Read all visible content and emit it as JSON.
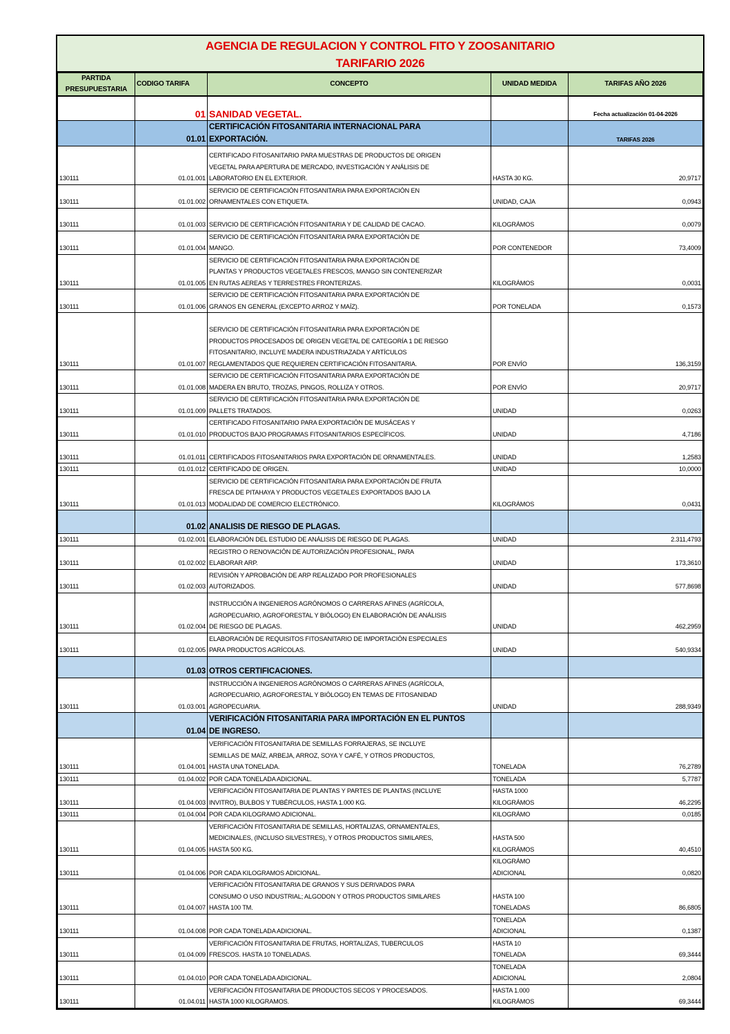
{
  "title": {
    "line1": "AGENCIA DE REGULACION Y CONTROL FITO Y ZOOSANITARIO",
    "line2": "TARIFARIO 2026"
  },
  "headers": {
    "partida": "PARTIDA PRESUPUESTARIA",
    "codigo": "CODIGO TARIFA",
    "concepto": "CONCEPTO",
    "unidad": "UNIDAD MEDIDA",
    "tarifas": "TARIFAS AÑO 2026"
  },
  "colors": {
    "title_bg": "#e2efda",
    "header_bg": "#c6e0b4",
    "section_blue": "#9dc3e6",
    "section_light_blue": "#bdd7ee",
    "red": "#e00000"
  },
  "rows": [
    {
      "type": "sec0",
      "codigo": "01",
      "concepto": "SANIDAD VEGETAL.",
      "tarifa": "Fecha actualización 01-04-2026"
    },
    {
      "type": "secA",
      "codigo": "01.01",
      "concepto": "CERTIFICACIÓN FITOSANITARIA INTERNACIONAL PARA\nEXPORTACIÓN.",
      "tarifa": "TARIFAS 2026"
    },
    {
      "type": "item",
      "partida": "130111",
      "codigo": "01.01.001",
      "concepto": "CERTIFICADO FITOSANITARIO PARA MUESTRAS DE PRODUCTOS DE ORIGEN\nVEGETAL PARA APERTURA DE MERCADO, INVESTIGACIÓN Y ANÁLISIS DE\nLABORATORIO EN EL EXTERIOR.",
      "unidad": "HASTA 30 KG.",
      "tarifa": "20,9717"
    },
    {
      "type": "item",
      "partida": "130111",
      "codigo": "01.01.002",
      "concepto": "SERVICIO DE CERTIFICACIÓN FITOSANITARIA PARA EXPORTACIÓN EN\nORNAMENTALES CON ETIQUETA.",
      "unidad": "UNIDAD, CAJA",
      "tarifa": "0,0943"
    },
    {
      "type": "item",
      "partida": "130111",
      "codigo": "01.01.003",
      "concepto": "SERVICIO DE CERTIFICACIÓN FITOSANITARIA Y DE CALIDAD DE CACAO.",
      "unidad": "KILOGRÁMOS",
      "tarifa": "0,0079"
    },
    {
      "type": "item",
      "partida": "130111",
      "codigo": "01.01.004",
      "concepto": "SERVICIO DE CERTIFICACIÓN FITOSANITARIA PARA  EXPORTACIÓN DE\nMANGO.",
      "unidad": "POR CONTENEDOR",
      "tarifa": "73,4009"
    },
    {
      "type": "item",
      "partida": "130111",
      "codigo": "01.01.005",
      "concepto": "SERVICIO DE CERTIFICACIÓN FITOSANITARIA PARA EXPORTACIÓN DE\nPLANTAS Y PRODUCTOS VEGETALES FRESCOS,  MANGO SIN CONTENERIZAR\nEN RUTAS AEREAS Y TERRESTRES FRONTERIZAS.",
      "unidad": "KILOGRÁMOS",
      "tarifa": "0,0031"
    },
    {
      "type": "item",
      "partida": "130111",
      "codigo": "01.01.006",
      "concepto": "SERVICIO DE CERTIFICACIÓN  FITOSANITARIA PARA EXPORTACIÓN DE\nGRANOS EN GENERAL (EXCEPTO ARROZ Y MAÍZ).",
      "unidad": "POR TONELADA",
      "tarifa": "0,1573"
    },
    {
      "type": "item",
      "partida": "130111",
      "codigo": "01.01.007",
      "concepto": "SERVICIO DE CERTIFICACIÓN  FITOSANITARIA PARA  EXPORTACIÓN DE\nPRODUCTOS PROCESADOS DE ORIGEN VEGETAL DE CATEGORÍA 1 DE RIESGO\nFITOSANITARIO, INCLUYE MADERA INDUSTRIAZADA Y ARTÍCULOS\nREGLAMENTADOS QUE REQUIEREN CERTIFICACIÓN FITOSANITARIA.",
      "unidad": "POR ENVÍO",
      "tarifa": "136,3159"
    },
    {
      "type": "item",
      "partida": "130111",
      "codigo": "01.01.008",
      "concepto": "SERVICIO DE CERTIFICACIÓN FITOSANITARIA PARA EXPORTACIÓN DE\nMADERA EN BRUTO, TROZAS, PINGOS, ROLLIZA Y OTROS.",
      "unidad": "POR ENVÍO",
      "tarifa": "20,9717"
    },
    {
      "type": "item",
      "partida": "130111",
      "codigo": "01.01.009",
      "concepto": "SERVICIO DE CERTIFICACIÓN FITOSANITARIA PARA EXPORTACIÓN  DE\nPALLETS TRATADOS.",
      "unidad": "UNIDAD",
      "tarifa": "0,0263"
    },
    {
      "type": "item",
      "partida": "130111",
      "codigo": "01.01.010",
      "concepto": "CERTIFICADO FITOSANITARIO PARA EXPORTACIÓN DE MUSÁCEAS Y\nPRODUCTOS BAJO PROGRAMAS FITOSANITARIOS ESPECÍFICOS.",
      "unidad": "UNIDAD",
      "tarifa": "4,7186"
    },
    {
      "type": "item",
      "partida": "130111",
      "codigo": "01.01.011",
      "concepto": "CERTIFICADOS FITOSANITARIOS PARA EXPORTACIÓN DE  ORNAMENTALES.",
      "unidad": "UNIDAD",
      "tarifa": "1,2583"
    },
    {
      "type": "item",
      "partida": "130111",
      "codigo": "01.01.012",
      "concepto": "CERTIFICADO DE ORIGEN.",
      "unidad": "UNIDAD",
      "tarifa": "10,0000"
    },
    {
      "type": "item",
      "partida": "130111",
      "codigo": "01.01.013",
      "concepto": "SERVICIO DE CERTIFICACIÓN FITOSANITARIA PARA EXPORTACIÓN DE FRUTA\nFRESCA DE PITAHAYA Y PRODUCTOS VEGETALES EXPORTADOS BAJO LA\nMODALIDAD DE COMERCIO ELECTRÓNICO.",
      "unidad": "KILOGRÁMOS",
      "tarifa": "0,0431"
    },
    {
      "type": "secB",
      "codigo": "01.02",
      "concepto": "ANALISIS DE RIESGO DE PLAGAS.",
      "tarifa": ""
    },
    {
      "type": "item",
      "partida": "130111",
      "codigo": "01.02.001",
      "concepto": "ELABORACIÓN DEL ESTUDIO DE ANÁLISIS DE RIESGO DE PLAGAS.",
      "unidad": "UNIDAD",
      "tarifa": "2.311,4793"
    },
    {
      "type": "item",
      "partida": "130111",
      "codigo": "01.02.002",
      "concepto": "REGISTRO O RENOVACIÓN DE AUTORIZACIÓN PROFESIONAL, PARA\nELABORAR ARP.",
      "unidad": "UNIDAD",
      "tarifa": "173,3610"
    },
    {
      "type": "item",
      "partida": "130111",
      "codigo": "01.02.003",
      "concepto": "REVISIÓN Y APROBACIÓN DE ARP REALIZADO POR PROFESIONALES\nAUTORIZADOS.",
      "unidad": "UNIDAD",
      "tarifa": "577,8698"
    },
    {
      "type": "item",
      "partida": "130111",
      "codigo": "01.02.004",
      "concepto": "INSTRUCCIÓN A INGENIEROS AGRÓNOMOS O CARRERAS AFINES (AGRÍCOLA,\nAGROPECUARIO, AGROFORESTAL Y BIÓLOGO) EN ELABORACIÓN DE ANÁLISIS\nDE RIESGO DE PLAGAS.",
      "unidad": "UNIDAD",
      "tarifa": "462,2959"
    },
    {
      "type": "item",
      "partida": "130111",
      "codigo": "01.02.005",
      "concepto": "ELABORACIÓN DE REQUISITOS FITOSANITARIO DE IMPORTACIÓN ESPECIALES\nPARA PRODUCTOS AGRÍCOLAS.",
      "unidad": "UNIDAD",
      "tarifa": "540,9334"
    },
    {
      "type": "secB",
      "codigo": "01.03",
      "concepto": "OTROS CERTIFICACIONES.",
      "tarifa": ""
    },
    {
      "type": "item",
      "partida": "130111",
      "codigo": "01.03.001",
      "concepto": "INSTRUCCIÓN  A INGENIEROS AGRÓNOMOS O CARRERAS AFINES (AGRÍCOLA,\nAGROPECUARIO, AGROFORESTAL Y BIÓLOGO) EN TEMAS DE FITOSANIDAD\nAGROPECUARIA.",
      "unidad": "UNIDAD",
      "tarifa": "288,9349"
    },
    {
      "type": "secB",
      "codigo": "01.04",
      "concepto": "VERIFICACIÓN  FITOSANITARIA PARA IMPORTACIÓN  EN EL PUNTOS\nDE INGRESO.",
      "tarifa": ""
    },
    {
      "type": "item",
      "partida": "130111",
      "codigo": "01.04.001",
      "concepto": "VERIFICACIÓN  FITOSANITARIA DE SEMILLAS FORRAJERAS, SE INCLUYE\nSEMILLAS DE MAÍZ, ARBEJA, ARROZ, SOYA Y CAFÉ,  Y OTROS PRODUCTOS,\nHASTA UNA  TONELADA.",
      "unidad": "TONELADA",
      "tarifa": "76,2789"
    },
    {
      "type": "item",
      "partida": "130111",
      "codigo": "01.04.002",
      "concepto": "POR CADA TONELADA  ADICIONAL.",
      "unidad": "TONELADA",
      "tarifa": "5,7787"
    },
    {
      "type": "item",
      "partida": "130111",
      "codigo": "01.04.003",
      "concepto": "VERIFICACIÓN FITOSANITARIA DE PLANTAS Y PARTES DE PLANTAS  (INCLUYE\nINVITRO),  BULBOS Y TUBÉRCULOS, HASTA 1.000 KG.",
      "unidad": "HASTA 1000\nKILOGRÁMOS",
      "tarifa": "46,2295"
    },
    {
      "type": "item",
      "partida": "130111",
      "codigo": "01.04.004",
      "concepto": "POR CADA KILOGRAMO ADICIONAL.",
      "unidad": "KILOGRÁMO",
      "tarifa": "0,0185"
    },
    {
      "type": "item",
      "partida": "130111",
      "codigo": "01.04.005",
      "concepto": "VERIFICACIÓN FITOSANITARIA DE SEMILLAS, HORTALIZAS, ORNAMENTALES,\nMEDICINALES, (INCLUSO SILVESTRES),  Y OTROS PRODUCTOS SIMILARES,\nHASTA 500 KG.",
      "unidad": " HASTA 500\nKILOGRÁMOS",
      "tarifa": "40,4510"
    },
    {
      "type": "item",
      "partida": "130111",
      "codigo": "01.04.006",
      "concepto": "POR CADA KILOGRAMOS ADICIONAL.",
      "unidad": "KILOGRÁMO\nADICIONAL",
      "tarifa": "0,0820"
    },
    {
      "type": "item",
      "partida": "130111",
      "codigo": "01.04.007",
      "concepto": "VERIFICACIÓN  FITOSANITARIA DE GRANOS Y SUS DERIVADOS PARA\nCONSUMO O USO INDUSTRIAL; ALGODON Y OTROS PRODUCTOS SIMILARES\nHASTA 100 TM.",
      "unidad": "HASTA 100\nTONELADAS",
      "tarifa": "86,6805"
    },
    {
      "type": "item",
      "partida": "130111",
      "codigo": "01.04.008",
      "concepto": "POR CADA TONELADA  ADICIONAL.",
      "unidad": " TONELADA\nADICIONAL",
      "tarifa": "0,1387"
    },
    {
      "type": "item",
      "partida": "130111",
      "codigo": "01.04.009",
      "concepto": "VERIFICACIÓN  FITOSANITARIA DE FRUTAS, HORTALIZAS, TUBERCULOS\nFRESCOS. HASTA 10 TONELADAS.",
      "unidad": "HASTA 10\nTONELADA",
      "tarifa": "69,3444"
    },
    {
      "type": "item",
      "partida": "130111",
      "codigo": "01.04.010",
      "concepto": "POR CADA TONELADA  ADICIONAL.",
      "unidad": "TONELADA\nADICIONAL",
      "tarifa": "2,0804"
    },
    {
      "type": "item",
      "partida": "130111",
      "codigo": "01.04.011",
      "concepto": "VERIFICACIÓN  FITOSANITARIA DE PRODUCTOS  SECOS  Y PROCESADOS.\nHASTA 1000 KILOGRAMOS.",
      "unidad": "HASTA 1.000\nKILOGRÁMOS",
      "tarifa": "69,3444"
    }
  ]
}
